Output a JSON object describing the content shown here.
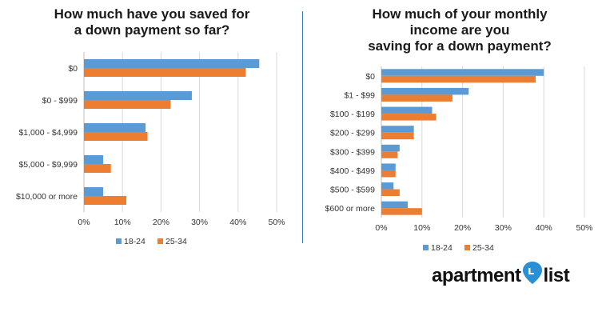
{
  "chart_data": [
    {
      "type": "bar",
      "orientation": "horizontal",
      "title_lines": [
        "How much have you saved for",
        "a down payment so far?"
      ],
      "categories": [
        "$0",
        "$0 - $999",
        "$1,000 - $4,999",
        "$5,000 - $9,999",
        "$10,000 or more"
      ],
      "series": [
        {
          "name": "18-24",
          "color": "#5b9bd5",
          "values": [
            45.5,
            28,
            16,
            5,
            5
          ]
        },
        {
          "name": "25-34",
          "color": "#ed7d31",
          "values": [
            42,
            22.5,
            16.5,
            7,
            11
          ]
        }
      ],
      "xlim": [
        0,
        50
      ],
      "xticks": [
        "0%",
        "10%",
        "20%",
        "30%",
        "40%",
        "50%"
      ],
      "grid": true,
      "legend_position": "bottom"
    },
    {
      "type": "bar",
      "orientation": "horizontal",
      "title_lines": [
        "How much of your monthly",
        "income are you",
        "saving for a down payment?"
      ],
      "categories": [
        "$0",
        "$1 - $99",
        "$100 - $199",
        "$200 - $299",
        "$300 - $399",
        "$400 - $499",
        "$500 - $599",
        "$600 or more"
      ],
      "series": [
        {
          "name": "18-24",
          "color": "#5b9bd5",
          "values": [
            40,
            21.5,
            12.5,
            8,
            4.5,
            3.5,
            3,
            6.5
          ]
        },
        {
          "name": "25-34",
          "color": "#ed7d31",
          "values": [
            38,
            17.5,
            13.5,
            8,
            4,
            3.5,
            4.5,
            10
          ]
        }
      ],
      "xlim": [
        0,
        50
      ],
      "xticks": [
        "0%",
        "10%",
        "20%",
        "30%",
        "40%",
        "50%"
      ],
      "grid": true,
      "legend_position": "bottom"
    }
  ],
  "logo": {
    "text_left": "apartment",
    "text_right": "list",
    "icon": "map-pin-icon",
    "color": "#111111",
    "accent": "#2b8fd6"
  }
}
